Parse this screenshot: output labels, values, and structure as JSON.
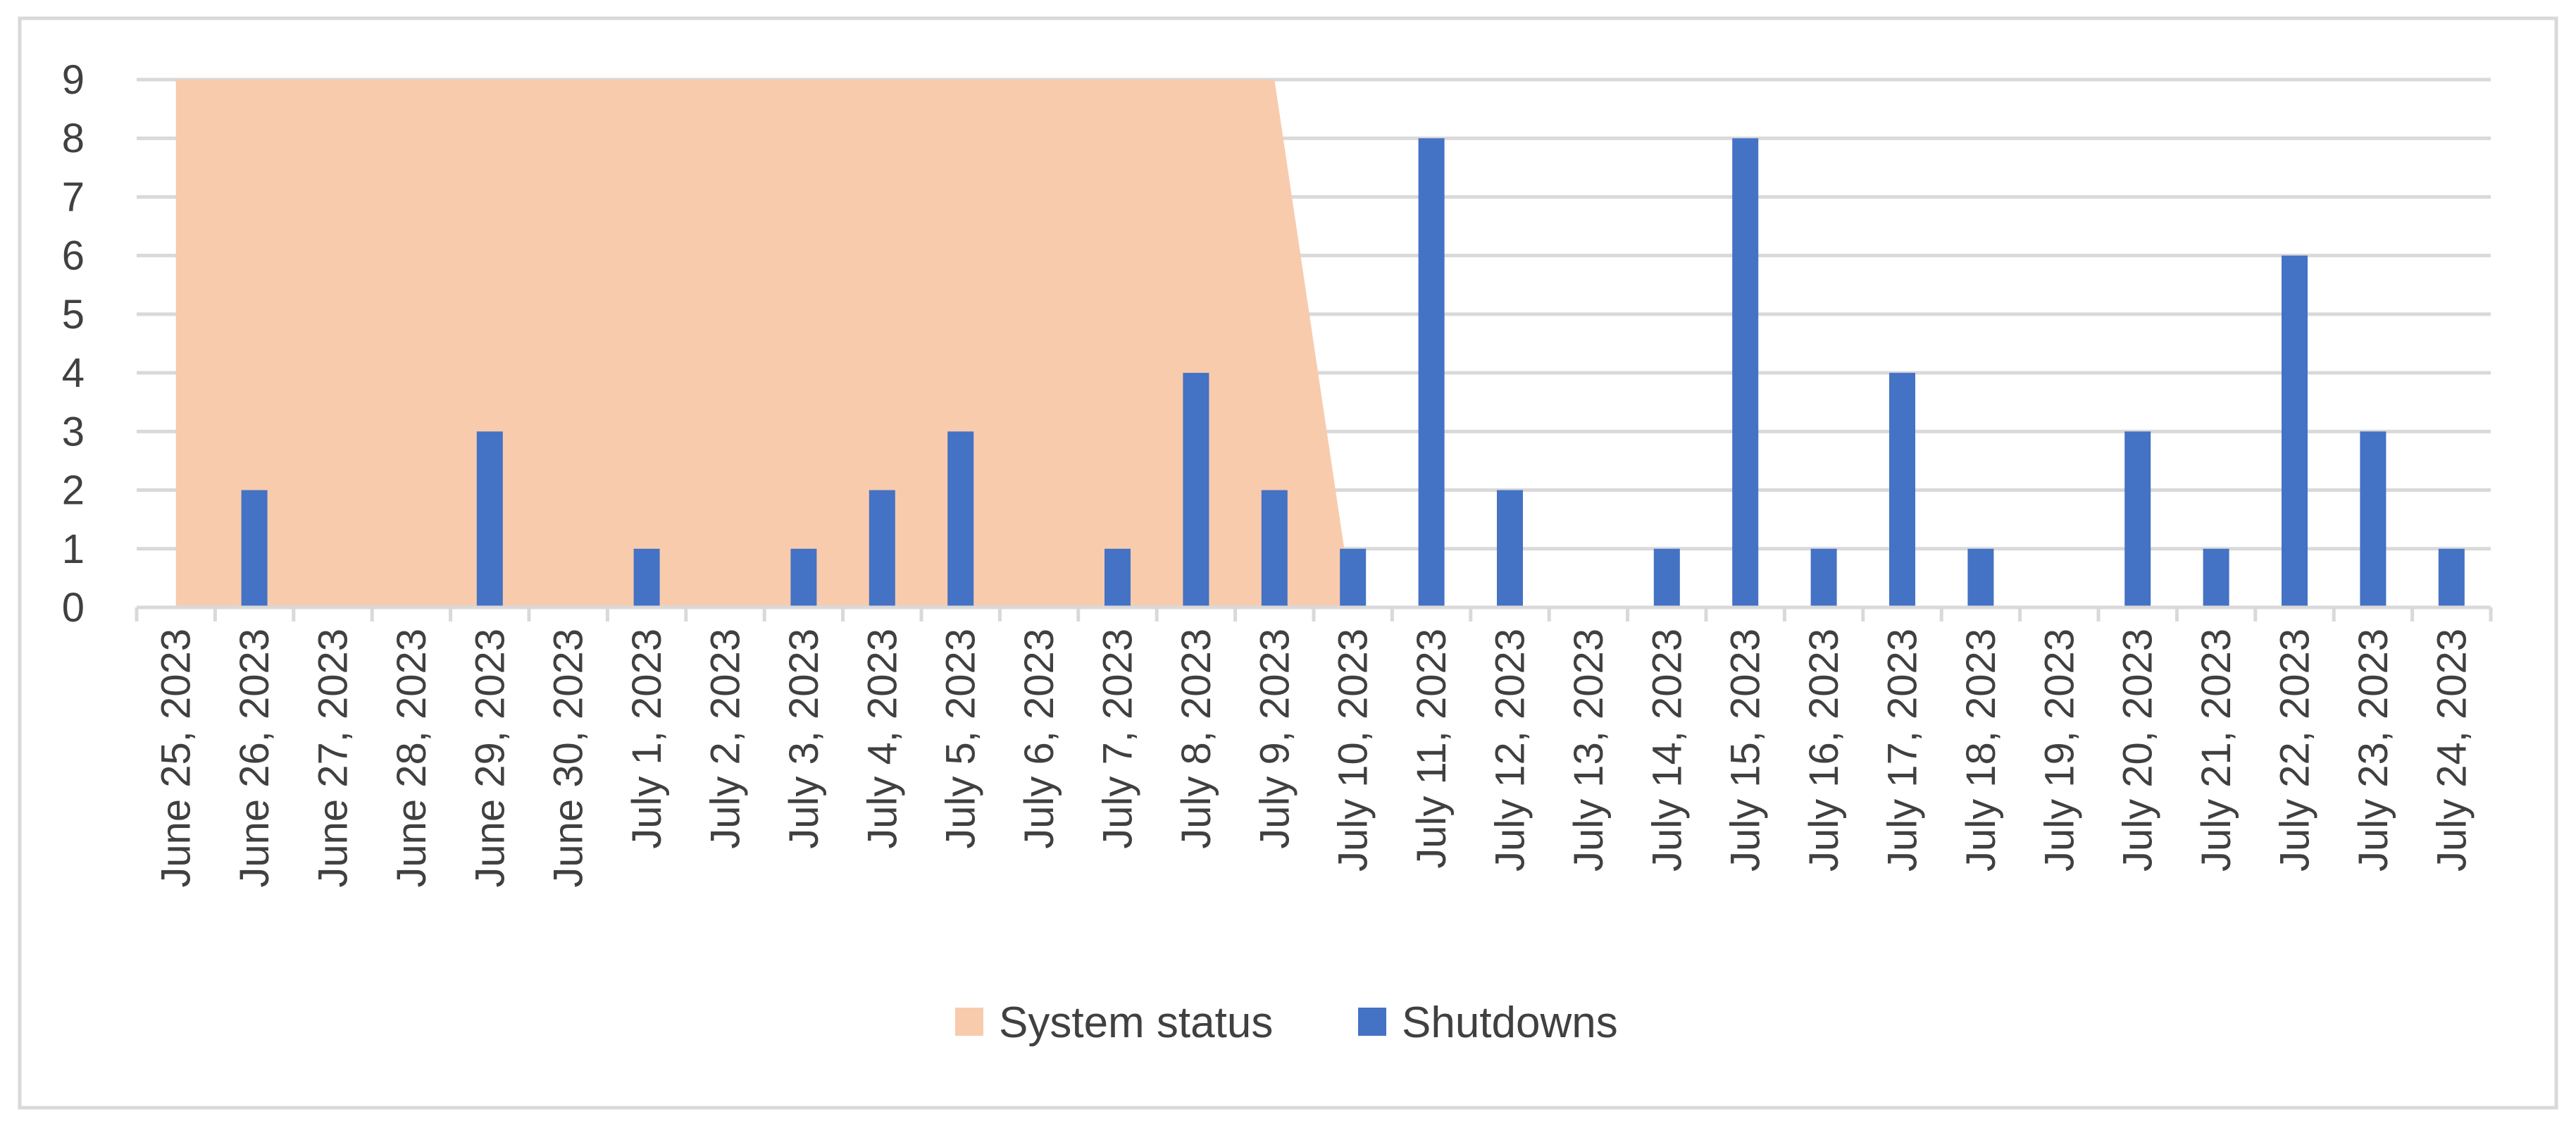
{
  "chart_data": {
    "type": "bar",
    "title": "",
    "xlabel": "",
    "ylabel": "",
    "ylim": [
      0,
      9
    ],
    "yticks": [
      0,
      1,
      2,
      3,
      4,
      5,
      6,
      7,
      8,
      9
    ],
    "grid": true,
    "legend_position": "bottom",
    "categories": [
      "June 25, 2023",
      "June 26, 2023",
      "June 27, 2023",
      "June 28, 2023",
      "June 29, 2023",
      "June 30, 2023",
      "July 1, 2023",
      "July 2, 2023",
      "July 3, 2023",
      "July 4, 2023",
      "July 5, 2023",
      "July 6, 2023",
      "July 7, 2023",
      "July 8, 2023",
      "July 9, 2023",
      "July 10, 2023",
      "July 11, 2023",
      "July 12, 2023",
      "July 13, 2023",
      "July 14, 2023",
      "July 15, 2023",
      "July 16, 2023",
      "July 17, 2023",
      "July 18, 2023",
      "July 19, 2023",
      "July 20, 2023",
      "July 21, 2023",
      "July 22, 2023",
      "July 23, 2023",
      "July 24, 2023"
    ],
    "series": [
      {
        "name": "System status",
        "type": "area",
        "color": "#F8CBAD",
        "values": [
          9,
          9,
          9,
          9,
          9,
          9,
          9,
          9,
          9,
          9,
          9,
          9,
          9,
          9,
          9,
          0,
          0,
          0,
          0,
          0,
          0,
          0,
          0,
          0,
          0,
          0,
          0,
          0,
          0,
          0
        ]
      },
      {
        "name": "Shutdowns",
        "type": "bar",
        "color": "#4472C4",
        "values": [
          0,
          2,
          0,
          0,
          3,
          0,
          1,
          0,
          1,
          2,
          3,
          0,
          1,
          4,
          2,
          1,
          8,
          2,
          0,
          1,
          8,
          1,
          4,
          1,
          0,
          3,
          1,
          6,
          3,
          1
        ]
      }
    ]
  },
  "colors": {
    "gridline": "#D9D9D9",
    "axis_text": "#404040",
    "border": "#D9D9D9"
  }
}
